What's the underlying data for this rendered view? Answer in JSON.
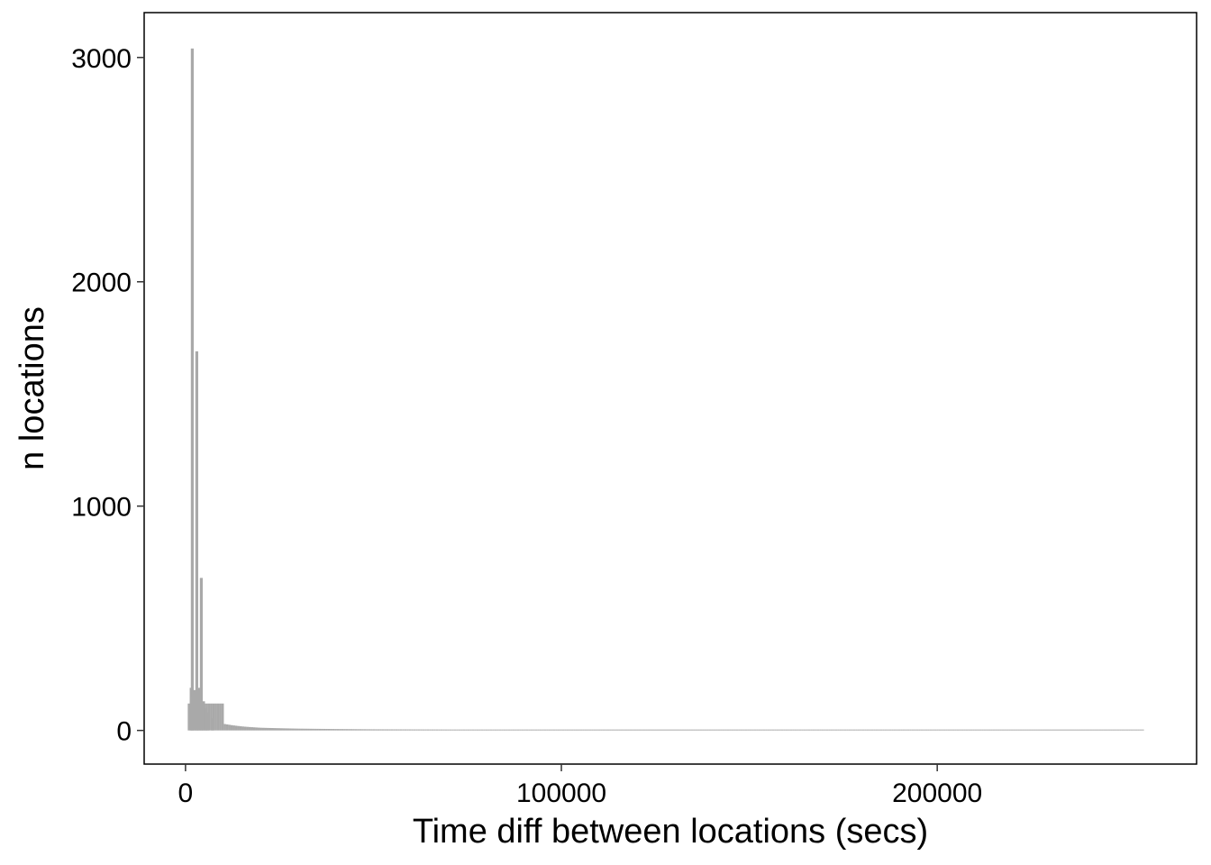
{
  "chart_data": {
    "type": "bar",
    "title": "",
    "xlabel": "Time diff between locations (secs)",
    "ylabel": "n locations",
    "xlim": [
      -11000,
      269000
    ],
    "ylim": [
      -150,
      3200
    ],
    "xticks": [
      0,
      100000,
      200000
    ],
    "xtick_labels": [
      "0",
      "100000",
      "200000"
    ],
    "yticks": [
      0,
      1000,
      2000,
      3000
    ],
    "ytick_labels": [
      "0",
      "1000",
      "2000",
      "3000"
    ],
    "grid": false,
    "legend": "none",
    "bar_color": "#a9a9a9",
    "peaks": [
      {
        "x": 1800,
        "y": 3040
      },
      {
        "x": 3000,
        "y": 1690
      },
      {
        "x": 4200,
        "y": 680
      },
      {
        "x": 1500,
        "y": 190
      },
      {
        "x": 2400,
        "y": 180
      },
      {
        "x": 3600,
        "y": 190
      },
      {
        "x": 4800,
        "y": 130
      },
      {
        "x": 5400,
        "y": 100
      },
      {
        "x": 6000,
        "y": 80
      },
      {
        "x": 7200,
        "y": 55
      }
    ],
    "tail": [
      {
        "x": 10000,
        "y": 30
      },
      {
        "x": 15000,
        "y": 18
      },
      {
        "x": 20000,
        "y": 12
      },
      {
        "x": 30000,
        "y": 8
      },
      {
        "x": 50000,
        "y": 5
      },
      {
        "x": 100000,
        "y": 3
      },
      {
        "x": 150000,
        "y": 2
      },
      {
        "x": 255000,
        "y": 1
      }
    ],
    "x_max": 255000
  }
}
